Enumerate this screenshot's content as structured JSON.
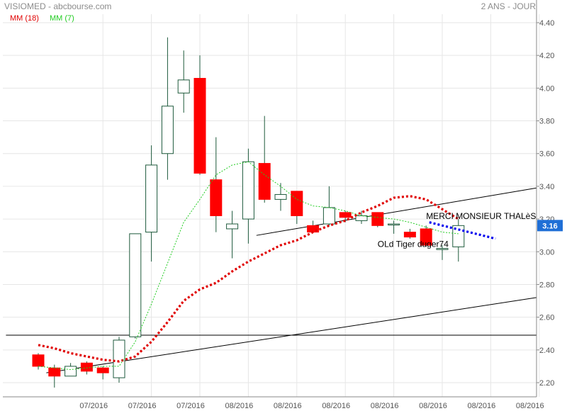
{
  "header": {
    "title": "VISIOMED - abcbourse.com",
    "period": "2 ANS - JOUR"
  },
  "colors": {
    "up_body": "#ffffff",
    "up_stroke": "#1e5a3c",
    "down_body": "#ff0000",
    "down_stroke": "#1e5a3c",
    "ma18": "#e00000",
    "ma7": "#22cc22",
    "grid": "#e6e6e6",
    "trendline": "#000000",
    "annotation_arrow": "#0000ee",
    "price_badge": "#1f6fd6"
  },
  "chart_data": {
    "type": "candlestick",
    "legend": [
      {
        "label": "MM (18)",
        "color": "#e00000"
      },
      {
        "label": "MM (7)",
        "color": "#22cc22"
      }
    ],
    "ylim": [
      2.15,
      4.45
    ],
    "y_ticks": [
      2.2,
      2.4,
      2.6,
      2.8,
      3.0,
      3.2,
      3.4,
      3.6,
      3.8,
      4.0,
      4.2,
      4.4
    ],
    "y_tick_labels": [
      "2.20",
      "2.40",
      "2.60",
      "2.80",
      "3.00",
      "3.20",
      "3.40",
      "3.60",
      "3.80",
      "4.00",
      "4.20",
      "4.40"
    ],
    "x_ticks": [
      4,
      7,
      10,
      13,
      16,
      19,
      22,
      25,
      28,
      31
    ],
    "x_tick_labels": [
      "07/2016",
      "07/2016",
      "07/2016",
      "08/2016",
      "08/2016",
      "08/2016",
      "08/2016",
      "08/2016",
      "08/2016",
      "08/2016"
    ],
    "candles": [
      {
        "o": 2.37,
        "h": 2.38,
        "l": 2.28,
        "c": 2.3
      },
      {
        "o": 2.29,
        "h": 2.31,
        "l": 2.17,
        "c": 2.24
      },
      {
        "o": 2.24,
        "h": 2.32,
        "l": 2.24,
        "c": 2.3
      },
      {
        "o": 2.32,
        "h": 2.33,
        "l": 2.25,
        "c": 2.27
      },
      {
        "o": 2.29,
        "h": 2.3,
        "l": 2.22,
        "c": 2.26
      },
      {
        "o": 2.23,
        "h": 2.48,
        "l": 2.2,
        "c": 2.46
      },
      {
        "o": 2.48,
        "h": 3.11,
        "l": 2.47,
        "c": 3.11
      },
      {
        "o": 3.12,
        "h": 3.65,
        "l": 2.94,
        "c": 3.53
      },
      {
        "o": 3.6,
        "h": 4.31,
        "l": 3.44,
        "c": 3.89
      },
      {
        "o": 3.97,
        "h": 4.23,
        "l": 3.85,
        "c": 4.05
      },
      {
        "o": 4.06,
        "h": 4.2,
        "l": 3.47,
        "c": 3.48
      },
      {
        "o": 3.44,
        "h": 3.7,
        "l": 3.12,
        "c": 3.22
      },
      {
        "o": 3.14,
        "h": 3.25,
        "l": 2.96,
        "c": 3.17
      },
      {
        "o": 3.2,
        "h": 3.63,
        "l": 3.05,
        "c": 3.55
      },
      {
        "o": 3.54,
        "h": 3.83,
        "l": 3.3,
        "c": 3.32
      },
      {
        "o": 3.32,
        "h": 3.42,
        "l": 3.25,
        "c": 3.35
      },
      {
        "o": 3.37,
        "h": 3.37,
        "l": 3.17,
        "c": 3.22
      },
      {
        "o": 3.16,
        "h": 3.19,
        "l": 3.12,
        "c": 3.12
      },
      {
        "o": 3.17,
        "h": 3.4,
        "l": 3.16,
        "c": 3.27
      },
      {
        "o": 3.24,
        "h": 3.25,
        "l": 3.18,
        "c": 3.21
      },
      {
        "o": 3.19,
        "h": 3.25,
        "l": 3.17,
        "c": 3.22
      },
      {
        "o": 3.24,
        "h": 3.24,
        "l": 3.15,
        "c": 3.16
      },
      {
        "o": 3.17,
        "h": 3.19,
        "l": 3.11,
        "c": 3.17
      },
      {
        "o": 3.12,
        "h": 3.14,
        "l": 3.08,
        "c": 3.09
      },
      {
        "o": 3.14,
        "h": 3.16,
        "l": 3.03,
        "c": 3.04
      },
      {
        "o": 3.02,
        "h": 3.04,
        "l": 2.95,
        "c": 3.02
      },
      {
        "o": 3.03,
        "h": 3.2,
        "l": 2.94,
        "c": 3.16
      }
    ],
    "ma7": [
      2.3,
      2.29,
      2.28,
      2.29,
      2.3,
      2.3,
      2.45,
      2.68,
      2.93,
      3.18,
      3.32,
      3.47,
      3.53,
      3.55,
      3.47,
      3.4,
      3.32,
      3.28,
      3.27,
      3.25,
      3.22,
      3.21,
      3.2,
      3.18,
      3.15,
      3.12,
      3.11
    ],
    "ma18": [
      2.43,
      2.41,
      2.38,
      2.36,
      2.34,
      2.33,
      2.36,
      2.45,
      2.57,
      2.7,
      2.77,
      2.81,
      2.88,
      2.94,
      2.99,
      3.04,
      3.07,
      3.12,
      3.16,
      3.19,
      3.24,
      3.28,
      3.33,
      3.34,
      3.32,
      3.26,
      3.2
    ],
    "trendlines": [
      {
        "x1": 0.5,
        "y1": 2.26,
        "x2": 32.5,
        "y2": 2.72
      },
      {
        "x1": 13.5,
        "y1": 3.1,
        "x2": 32.5,
        "y2": 3.39
      },
      {
        "x1": -2,
        "y1": 2.49,
        "x2": 34,
        "y2": 2.49
      }
    ],
    "annotation_arrow": {
      "x1": 24.2,
      "y1": 3.18,
      "x2": 28.3,
      "y2": 3.08
    },
    "annotations": [
      {
        "text": "MERCI MONSIEUR THALèS",
        "x": 24.0,
        "y": 3.2
      },
      {
        "text": "OLd Tiger duger74",
        "x": 21.0,
        "y": 3.03
      }
    ],
    "last_price": "3.16"
  }
}
